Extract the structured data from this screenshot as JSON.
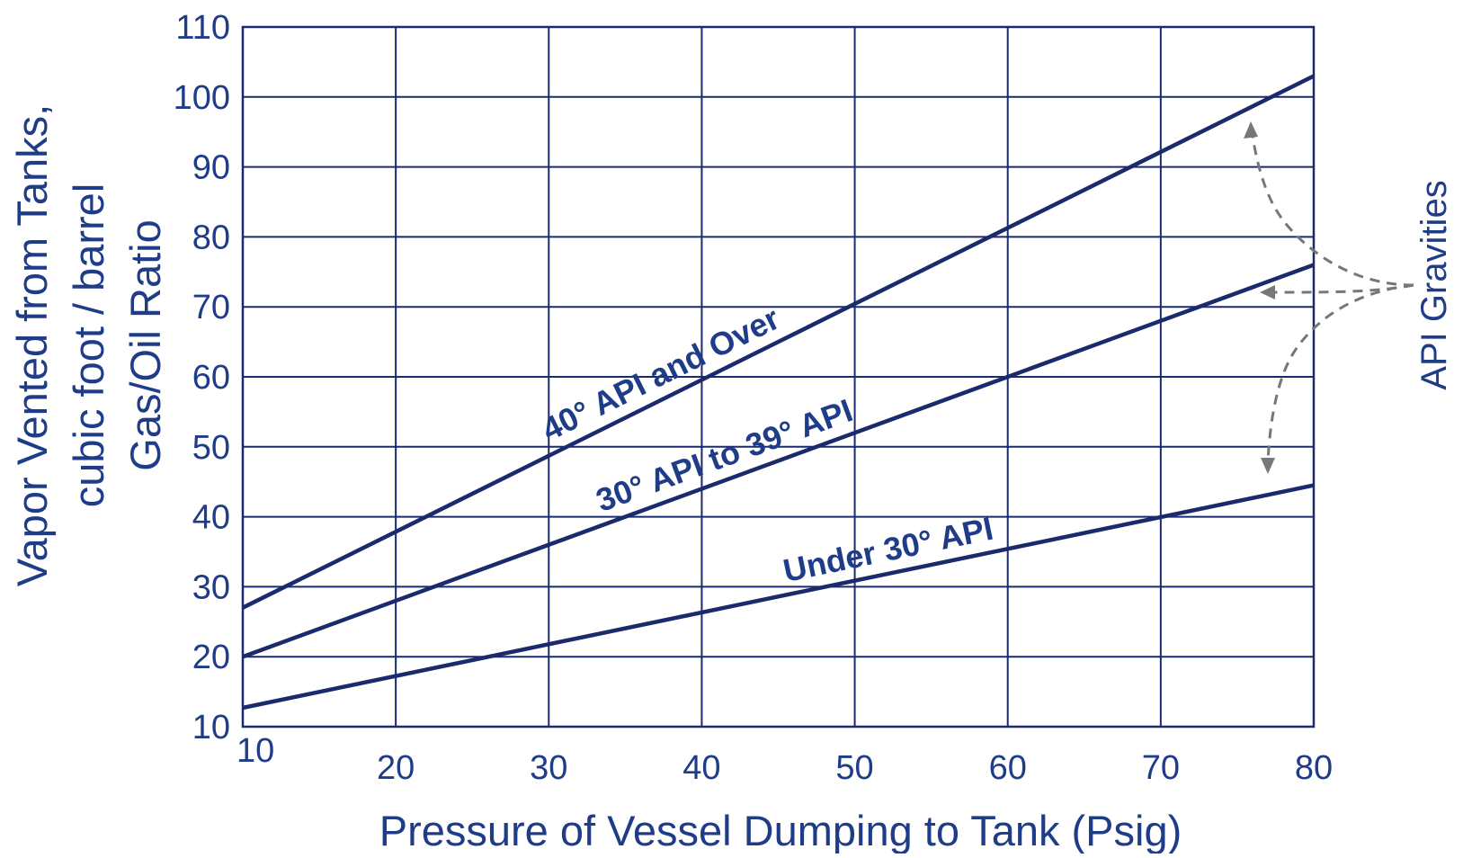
{
  "chart_data": {
    "type": "line",
    "title": "",
    "xlabel": "Pressure of Vessel Dumping to Tank  (Psig)",
    "ylabel_lines": [
      "Vapor Vented from Tanks,",
      "cubic foot / barrel",
      "Gas/Oil Ratio"
    ],
    "xlim": [
      10,
      80
    ],
    "ylim": [
      10,
      110
    ],
    "x_ticks": [
      "10",
      "20",
      "30",
      "40",
      "50",
      "60",
      "70",
      "80"
    ],
    "y_ticks": [
      "10",
      "20",
      "30",
      "40",
      "50",
      "60",
      "70",
      "80",
      "90",
      "100",
      "110"
    ],
    "grid": true,
    "series": [
      {
        "name": "40°   API and Over",
        "x": [
          10,
          80
        ],
        "y": [
          27,
          103
        ]
      },
      {
        "name": "30°   API to 39°   API",
        "x": [
          10,
          80
        ],
        "y": [
          20,
          76
        ]
      },
      {
        "name": "Under 30°   API",
        "x": [
          10,
          80
        ],
        "y": [
          12.7,
          44.5
        ]
      }
    ],
    "annotation": "API Gravities",
    "colors": {
      "series": "#1a2a6c",
      "text": "#1f3c88",
      "grid": "#1a2a6c",
      "arrow": "#777777"
    }
  }
}
